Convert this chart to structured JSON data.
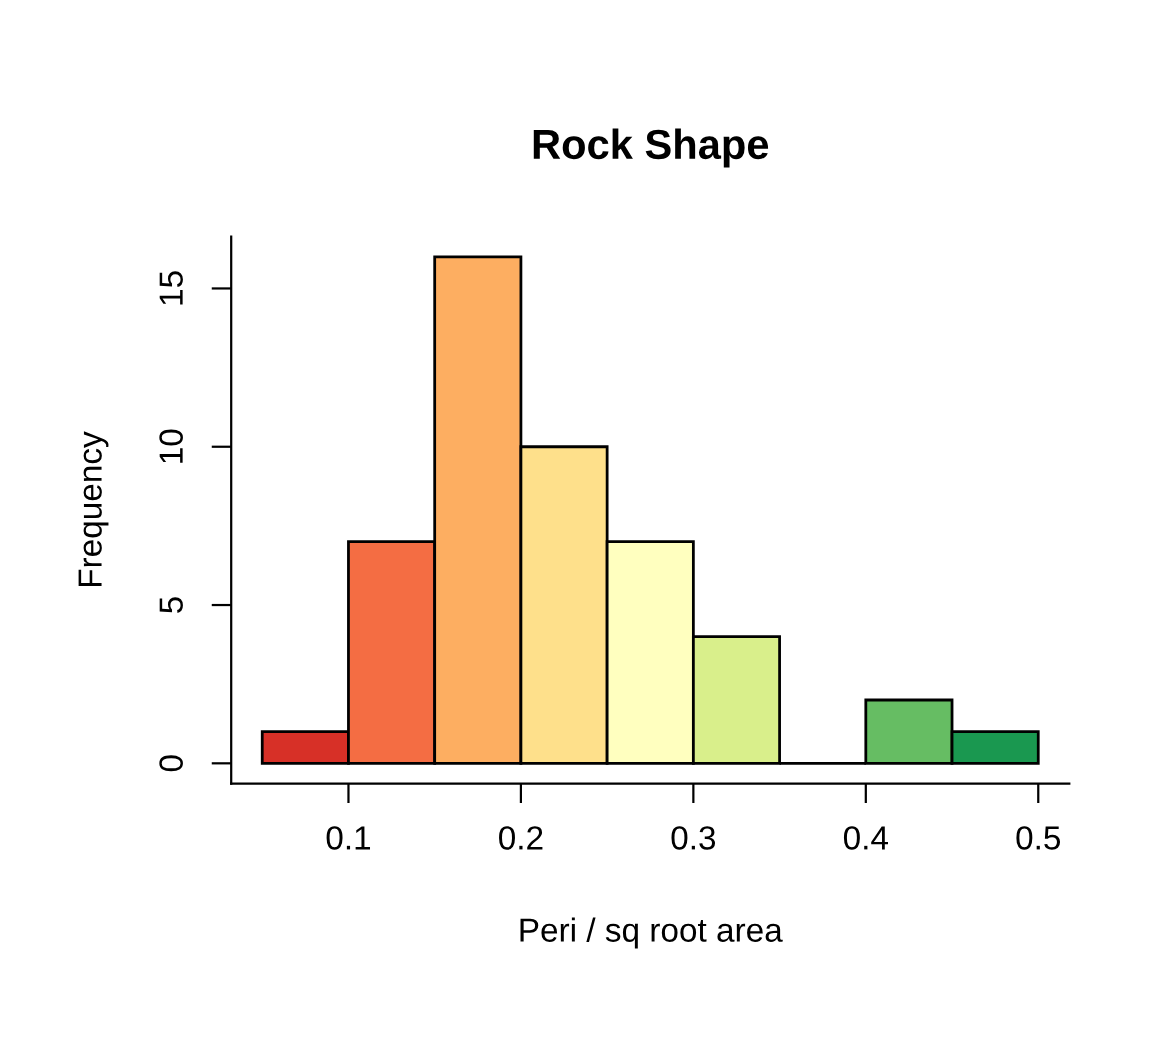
{
  "chart_data": {
    "type": "histogram",
    "title": "Rock Shape",
    "xlabel": "Peri / sq root area",
    "ylabel": "Frequency",
    "bins": [
      0.05,
      0.1,
      0.15,
      0.2,
      0.25,
      0.3,
      0.35,
      0.4,
      0.45,
      0.5
    ],
    "values": [
      1,
      7,
      16,
      10,
      7,
      4,
      0,
      2,
      1
    ],
    "colors": [
      "#d73027",
      "#f46d43",
      "#fdae61",
      "#fee08b",
      "#ffffbf",
      "#d9ef8b",
      null,
      "#66bd63",
      "#1a9850"
    ],
    "xlim": [
      0.032,
      0.518
    ],
    "ylim": [
      -0.64,
      16.64
    ],
    "xticks": [
      0.1,
      0.2,
      0.3,
      0.4,
      0.5
    ],
    "yticks": [
      0,
      5,
      10,
      15
    ],
    "grid": false
  }
}
